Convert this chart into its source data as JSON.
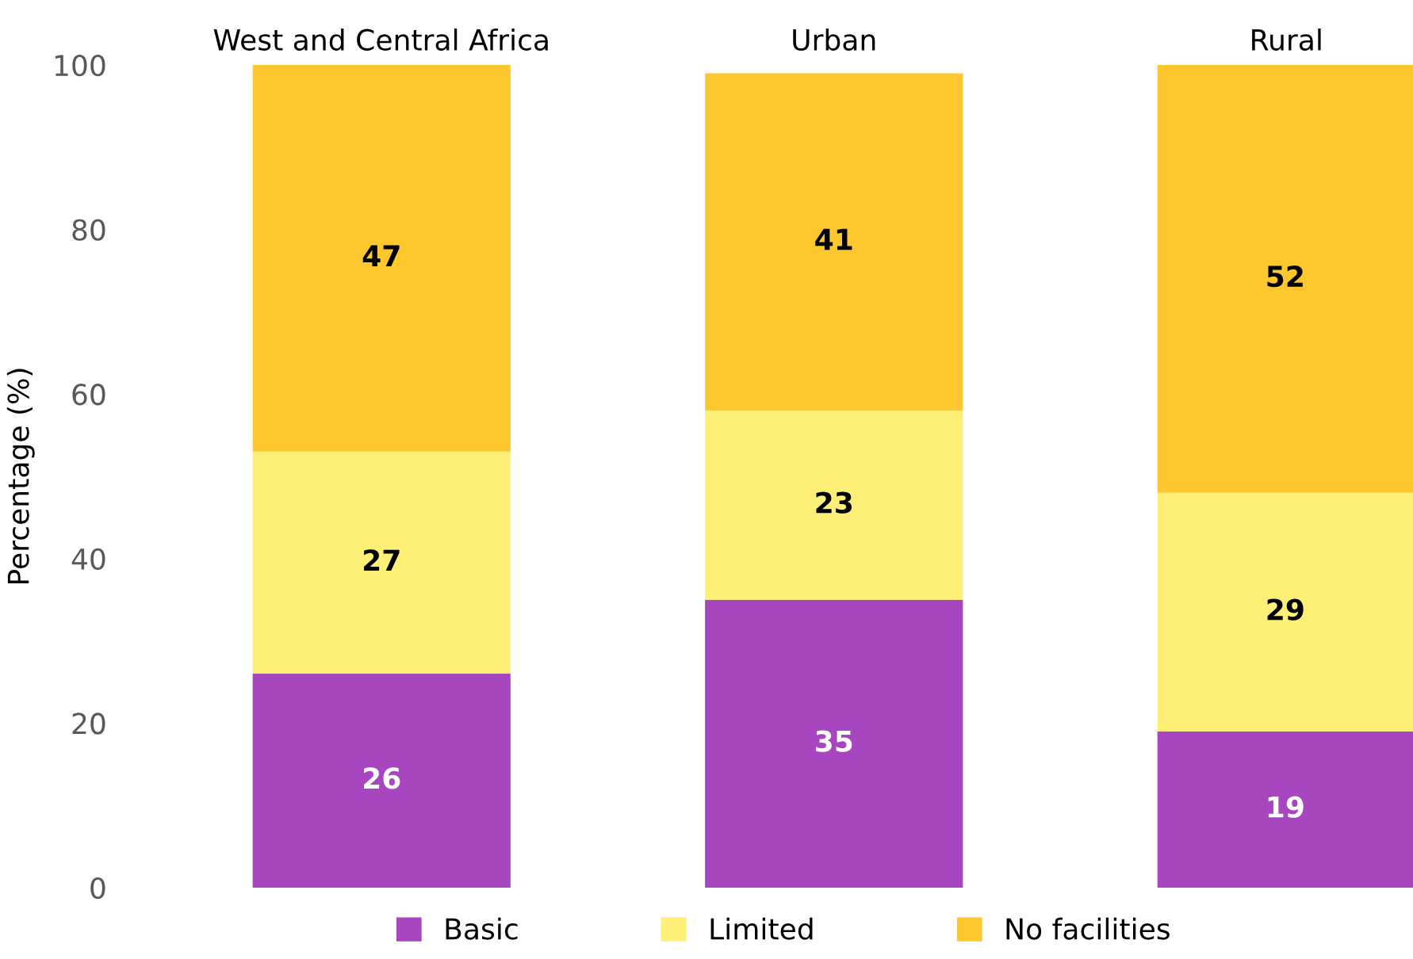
{
  "chart_data": {
    "type": "bar",
    "stacked": true,
    "ylabel": "Percentage (%)",
    "categories": [
      "West and Central Africa",
      "Urban",
      "Rural"
    ],
    "series": [
      {
        "name": "Basic",
        "color": "#a846bf",
        "values": [
          26,
          35,
          19
        ]
      },
      {
        "name": "Limited",
        "color": "#fef077",
        "values": [
          27,
          23,
          29
        ]
      },
      {
        "name": "No facilities",
        "color": "#fec72e",
        "values": [
          47,
          41,
          52
        ]
      }
    ],
    "ylim": [
      0,
      100
    ],
    "yticks": [
      0,
      20,
      40,
      60,
      80,
      100
    ],
    "data_labels": true,
    "legend": "bottom",
    "grid": false
  }
}
